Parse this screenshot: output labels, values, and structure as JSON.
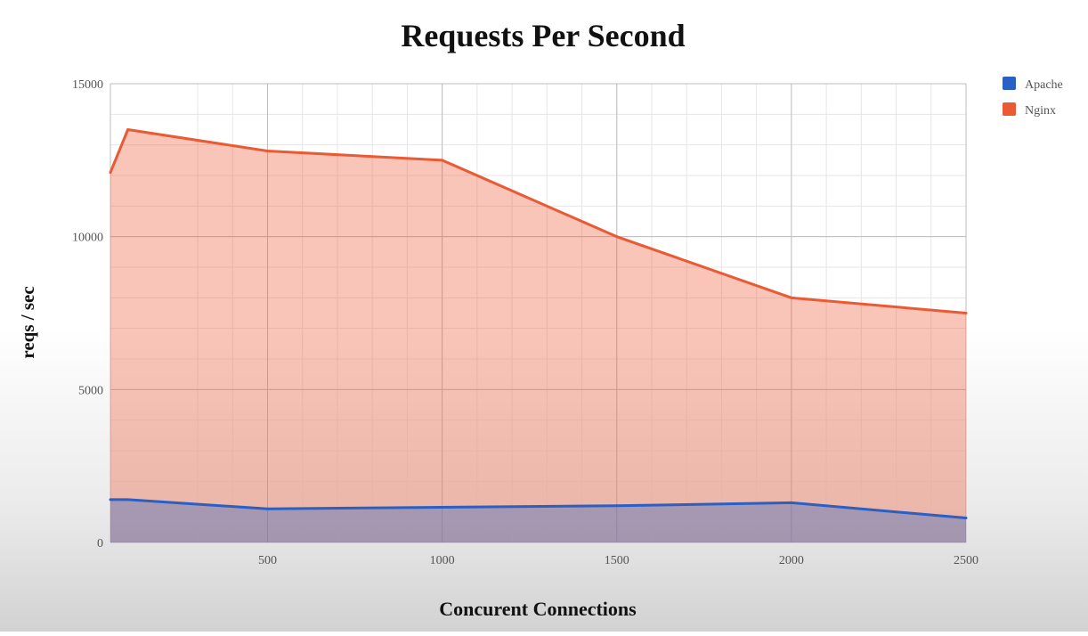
{
  "chart_data": {
    "type": "area",
    "title": "Requests Per Second",
    "xlabel": "Concurent Connections",
    "ylabel": "reqs / sec",
    "xlim": [
      50,
      2500
    ],
    "ylim": [
      0,
      15000
    ],
    "xticks": [
      500,
      1000,
      1500,
      2000,
      2500
    ],
    "yticks": [
      0,
      5000,
      10000,
      15000
    ],
    "xtick_labels": [
      "500",
      "1000",
      "1500",
      "2000",
      "2500"
    ],
    "ytick_labels": [
      "0",
      "5000",
      "10000",
      "15000"
    ],
    "grid": true,
    "legend_position": "top-right",
    "series": [
      {
        "name": "Apache",
        "color": "#2a5fc4",
        "points": [
          {
            "x": 50,
            "y": 1400
          },
          {
            "x": 100,
            "y": 1400
          },
          {
            "x": 500,
            "y": 1100
          },
          {
            "x": 1000,
            "y": 1150
          },
          {
            "x": 1500,
            "y": 1200
          },
          {
            "x": 2000,
            "y": 1300
          },
          {
            "x": 2500,
            "y": 800
          }
        ]
      },
      {
        "name": "Nginx",
        "color": "#ea5a33",
        "points": [
          {
            "x": 50,
            "y": 12100
          },
          {
            "x": 100,
            "y": 13500
          },
          {
            "x": 500,
            "y": 12800
          },
          {
            "x": 1000,
            "y": 12500
          },
          {
            "x": 1500,
            "y": 10000
          },
          {
            "x": 2000,
            "y": 8000
          },
          {
            "x": 2500,
            "y": 7500
          }
        ]
      }
    ]
  }
}
